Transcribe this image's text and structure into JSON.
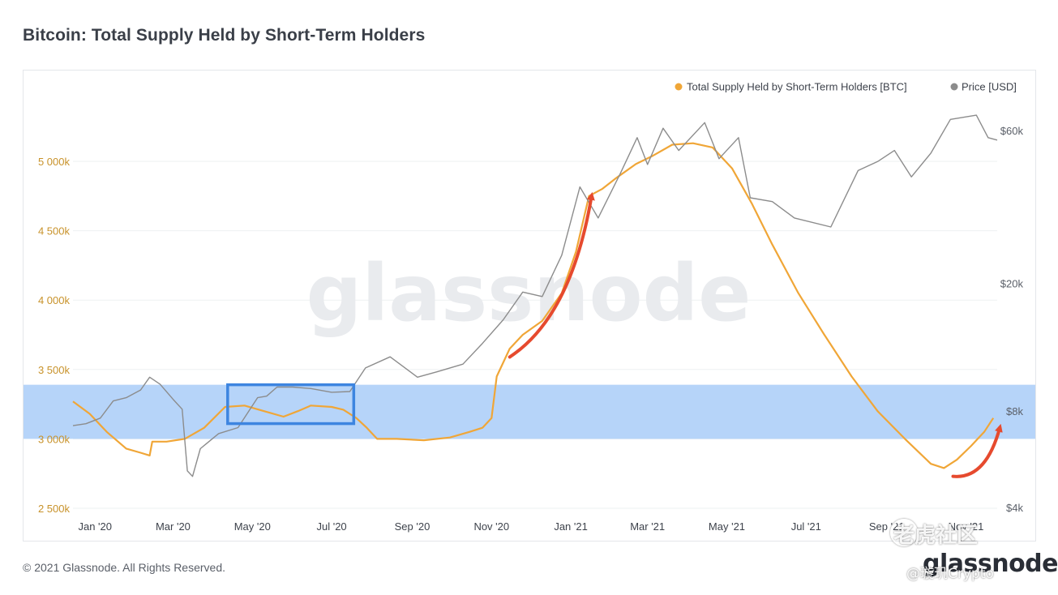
{
  "header": {
    "title": "Bitcoin: Total Supply Held by Short-Term Holders"
  },
  "footer": {
    "copyright": "© 2021 Glassnode. All Rights Reserved."
  },
  "brand": {
    "logo_text": "glassnode",
    "watermark_text": "glassnode"
  },
  "overlay_watermark": {
    "community_text": "老虎社区",
    "handle_text": "@璇玑Crypto"
  },
  "colors": {
    "sth_series": "#f0a637",
    "price_series": "#8c8c8c",
    "highlight_band": "#a9ccf8",
    "highlight_box": "#3d85e0",
    "arrow": "#e64a2e",
    "left_axis_text": "#c8922a",
    "right_axis_text": "#5a5f68"
  },
  "chart_data": {
    "type": "line",
    "title": "Bitcoin: Total Supply Held by Short-Term Holders",
    "legend_position": "top-right",
    "grid": "horizontal",
    "x_ticks": [
      "Jan '20",
      "Mar '20",
      "May '20",
      "Jul '20",
      "Sep '20",
      "Nov '20",
      "Jan '21",
      "Mar '21",
      "May '21",
      "Jul '21",
      "Sep '21",
      "Nov '21"
    ],
    "x_range": [
      "2019-12-15",
      "2021-11-25"
    ],
    "left_axis": {
      "unit": "BTC",
      "range": [
        2500000,
        5500000
      ],
      "ticks": [
        2500000,
        3000000,
        3500000,
        4000000,
        4500000,
        5000000
      ],
      "tick_labels": [
        "2 500k",
        "3 000k",
        "3 500k",
        "4 000k",
        "4 500k",
        "5 000k"
      ]
    },
    "right_axis": {
      "unit": "USD",
      "scale": "log",
      "ticks": [
        4000,
        8000,
        20000,
        60000
      ],
      "tick_labels": [
        "$4k",
        "$8k",
        "$20k",
        "$60k"
      ]
    },
    "series": [
      {
        "name": "Total Supply Held by Short-Term Holders [BTC]",
        "axis": "left",
        "points": [
          [
            "2019-12-15",
            3270000
          ],
          [
            "2019-12-28",
            3180000
          ],
          [
            "2020-01-10",
            3050000
          ],
          [
            "2020-01-25",
            2930000
          ],
          [
            "2020-02-05",
            2900000
          ],
          [
            "2020-02-12",
            2880000
          ],
          [
            "2020-02-14",
            2980000
          ],
          [
            "2020-02-25",
            2980000
          ],
          [
            "2020-03-10",
            3000000
          ],
          [
            "2020-03-25",
            3080000
          ],
          [
            "2020-04-10",
            3230000
          ],
          [
            "2020-04-25",
            3240000
          ],
          [
            "2020-05-10",
            3200000
          ],
          [
            "2020-05-25",
            3160000
          ],
          [
            "2020-06-05",
            3200000
          ],
          [
            "2020-06-15",
            3240000
          ],
          [
            "2020-07-01",
            3230000
          ],
          [
            "2020-07-10",
            3210000
          ],
          [
            "2020-07-20",
            3150000
          ],
          [
            "2020-07-28",
            3080000
          ],
          [
            "2020-08-05",
            3000000
          ],
          [
            "2020-08-20",
            3000000
          ],
          [
            "2020-09-10",
            2990000
          ],
          [
            "2020-09-30",
            3010000
          ],
          [
            "2020-10-15",
            3050000
          ],
          [
            "2020-10-25",
            3080000
          ],
          [
            "2020-11-01",
            3150000
          ],
          [
            "2020-11-05",
            3450000
          ],
          [
            "2020-11-15",
            3650000
          ],
          [
            "2020-11-25",
            3750000
          ],
          [
            "2020-12-10",
            3850000
          ],
          [
            "2020-12-25",
            4050000
          ],
          [
            "2021-01-05",
            4350000
          ],
          [
            "2021-01-15",
            4750000
          ],
          [
            "2021-01-25",
            4800000
          ],
          [
            "2021-02-05",
            4880000
          ],
          [
            "2021-02-20",
            4980000
          ],
          [
            "2021-03-05",
            5040000
          ],
          [
            "2021-03-20",
            5120000
          ],
          [
            "2021-04-05",
            5130000
          ],
          [
            "2021-04-20",
            5100000
          ],
          [
            "2021-05-05",
            4950000
          ],
          [
            "2021-05-20",
            4700000
          ],
          [
            "2021-06-05",
            4400000
          ],
          [
            "2021-06-25",
            4050000
          ],
          [
            "2021-07-15",
            3750000
          ],
          [
            "2021-08-05",
            3450000
          ],
          [
            "2021-08-25",
            3200000
          ],
          [
            "2021-09-15",
            3000000
          ],
          [
            "2021-10-05",
            2820000
          ],
          [
            "2021-10-15",
            2790000
          ],
          [
            "2021-10-25",
            2850000
          ],
          [
            "2021-11-05",
            2950000
          ],
          [
            "2021-11-15",
            3050000
          ],
          [
            "2021-11-22",
            3150000
          ]
        ]
      },
      {
        "name": "Price [USD]",
        "axis": "right",
        "points": [
          [
            "2019-12-15",
            7200
          ],
          [
            "2019-12-25",
            7300
          ],
          [
            "2020-01-05",
            7600
          ],
          [
            "2020-01-15",
            8600
          ],
          [
            "2020-01-25",
            8800
          ],
          [
            "2020-02-05",
            9300
          ],
          [
            "2020-02-12",
            10200
          ],
          [
            "2020-02-20",
            9700
          ],
          [
            "2020-03-01",
            8700
          ],
          [
            "2020-03-08",
            8100
          ],
          [
            "2020-03-12",
            5200
          ],
          [
            "2020-03-16",
            5000
          ],
          [
            "2020-03-22",
            6100
          ],
          [
            "2020-04-05",
            6800
          ],
          [
            "2020-04-20",
            7100
          ],
          [
            "2020-05-05",
            8800
          ],
          [
            "2020-05-12",
            8900
          ],
          [
            "2020-05-20",
            9500
          ],
          [
            "2020-06-01",
            9500
          ],
          [
            "2020-06-15",
            9400
          ],
          [
            "2020-07-01",
            9150
          ],
          [
            "2020-07-15",
            9200
          ],
          [
            "2020-07-27",
            10900
          ],
          [
            "2020-08-15",
            11800
          ],
          [
            "2020-09-05",
            10200
          ],
          [
            "2020-09-20",
            10600
          ],
          [
            "2020-10-10",
            11200
          ],
          [
            "2020-10-25",
            13000
          ],
          [
            "2020-11-10",
            15400
          ],
          [
            "2020-11-25",
            18800
          ],
          [
            "2020-12-10",
            18200
          ],
          [
            "2020-12-25",
            24500
          ],
          [
            "2021-01-08",
            40000
          ],
          [
            "2021-01-22",
            32000
          ],
          [
            "2021-02-08",
            44000
          ],
          [
            "2021-02-21",
            57000
          ],
          [
            "2021-03-01",
            47000
          ],
          [
            "2021-03-13",
            61000
          ],
          [
            "2021-03-25",
            52000
          ],
          [
            "2021-04-14",
            63500
          ],
          [
            "2021-04-25",
            49000
          ],
          [
            "2021-05-10",
            57000
          ],
          [
            "2021-05-19",
            37000
          ],
          [
            "2021-06-05",
            36000
          ],
          [
            "2021-06-22",
            32000
          ],
          [
            "2021-07-20",
            30000
          ],
          [
            "2021-08-10",
            45000
          ],
          [
            "2021-08-25",
            48000
          ],
          [
            "2021-09-07",
            52000
          ],
          [
            "2021-09-20",
            43000
          ],
          [
            "2021-10-05",
            51000
          ],
          [
            "2021-10-20",
            65000
          ],
          [
            "2021-11-09",
            67000
          ],
          [
            "2021-11-18",
            57000
          ],
          [
            "2021-11-25",
            56000
          ]
        ]
      }
    ],
    "annotations": {
      "highlight_band": {
        "y_range_btc": [
          3000000,
          3390000
        ]
      },
      "highlight_box": {
        "x_range": [
          "2020-04-12",
          "2020-07-18"
        ],
        "y_range_btc": [
          3110000,
          3390000
        ]
      },
      "arrows": [
        {
          "from": [
            "2020-11-15",
            3590000
          ],
          "to": [
            "2021-01-17",
            4750000
          ]
        },
        {
          "from": [
            "2021-10-22",
            2730000
          ],
          "to": [
            "2021-11-27",
            3080000
          ]
        }
      ]
    }
  }
}
